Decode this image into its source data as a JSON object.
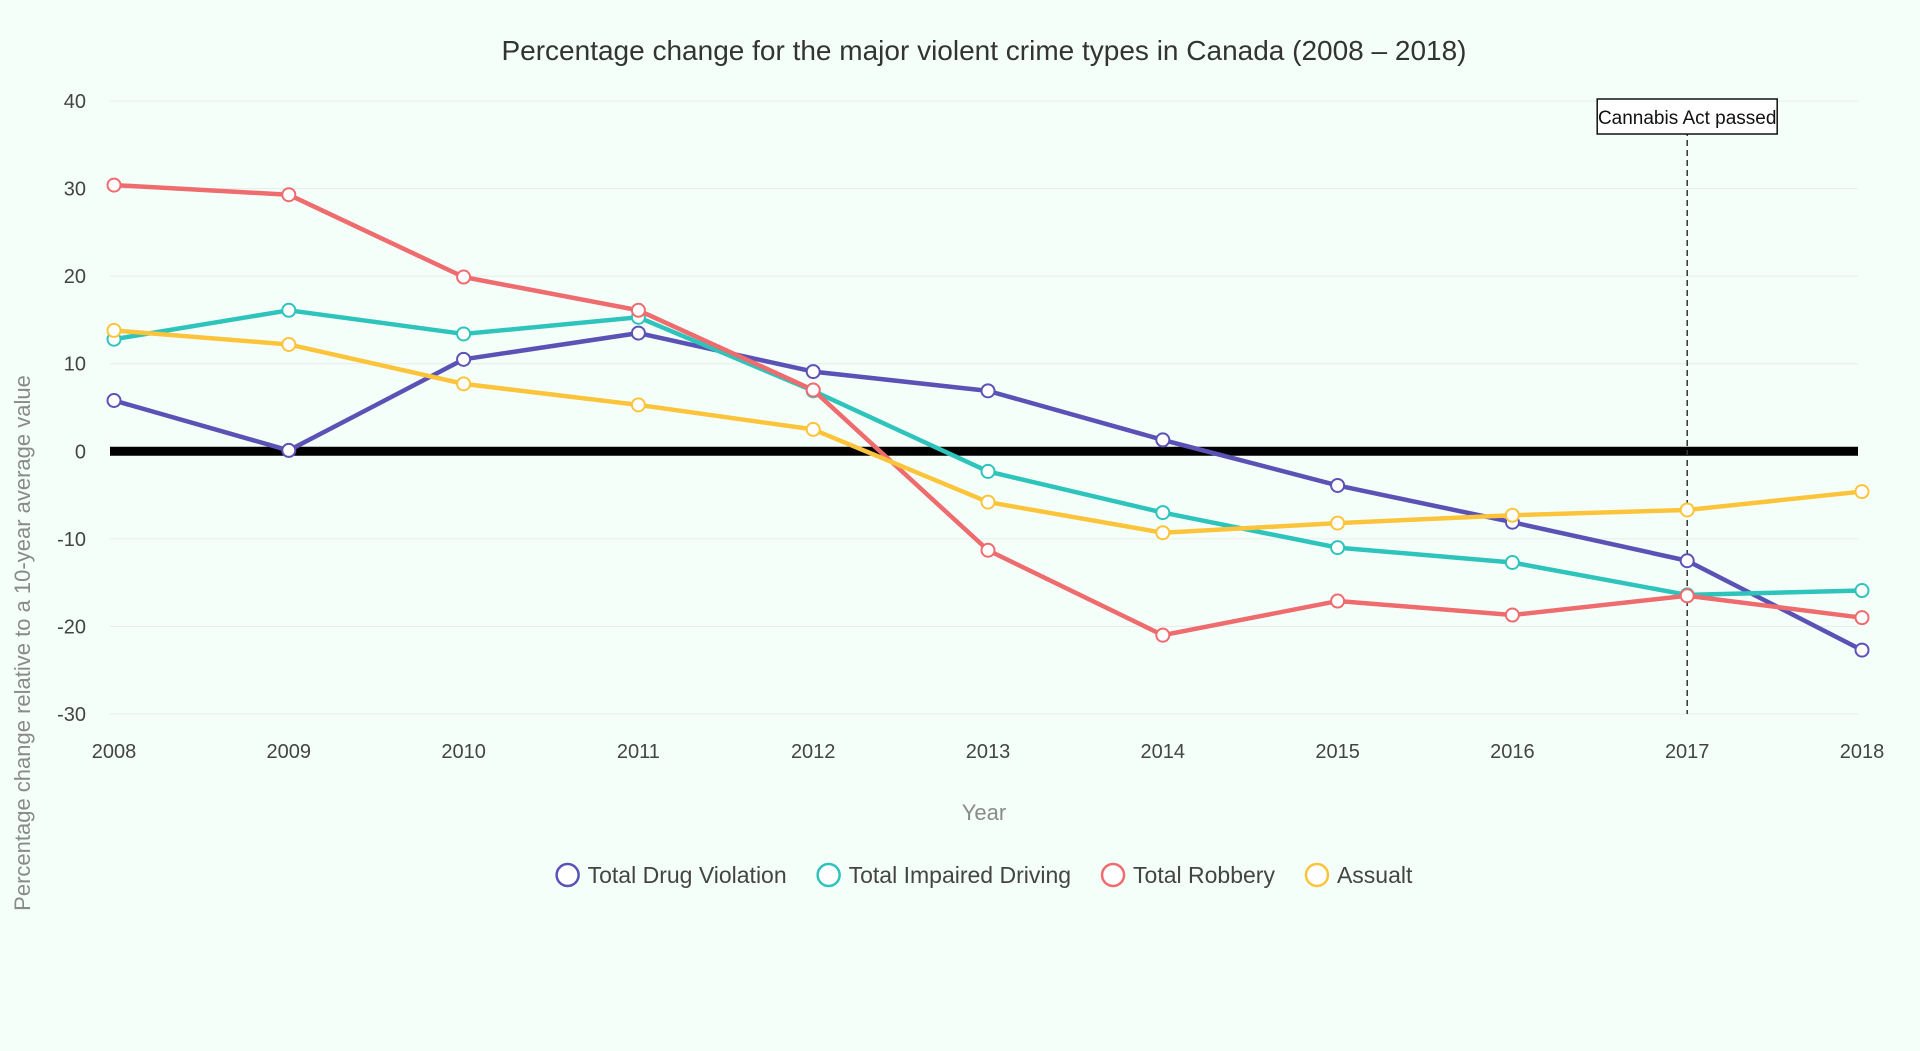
{
  "chart_data": {
    "type": "line",
    "title": "Percentage change for the major violent crime types in Canada (2008 – 2018)",
    "xlabel": "Year",
    "ylabel": "Percentage change relative to a 10-year average value",
    "x": [
      2008,
      2009,
      2010,
      2011,
      2012,
      2013,
      2014,
      2015,
      2016,
      2017,
      2018
    ],
    "ylim": [
      -30,
      40
    ],
    "yticks": [
      40,
      30,
      20,
      10,
      0,
      -10,
      -20,
      -30
    ],
    "grid": true,
    "legend_position": "bottom",
    "zero_line": true,
    "series": [
      {
        "name": "Total Drug Violation",
        "color": "#5b52b5",
        "values": [
          5.8,
          0.1,
          10.5,
          13.5,
          9.1,
          6.9,
          1.3,
          -3.9,
          -8.1,
          -12.5,
          -22.7
        ]
      },
      {
        "name": "Total Impaired Driving",
        "color": "#2ec4bc",
        "values": [
          12.8,
          16.1,
          13.4,
          15.3,
          6.9,
          -2.3,
          -7.0,
          -11.0,
          -12.7,
          -16.4,
          -15.9
        ]
      },
      {
        "name": "Total Robbery",
        "color": "#ee6b6e",
        "values": [
          30.4,
          29.3,
          19.9,
          16.1,
          7.0,
          -11.3,
          -21.0,
          -17.1,
          -18.7,
          -16.5,
          -19.0
        ]
      },
      {
        "name": "Assualt",
        "color": "#fbc43a",
        "values": [
          13.8,
          12.2,
          7.7,
          5.3,
          2.5,
          -5.8,
          -9.3,
          -8.2,
          -7.3,
          -6.7,
          -4.6
        ]
      }
    ],
    "annotations": [
      {
        "x": 2017,
        "text": "Cannabis Act passed",
        "style": "dashed-vertical-line"
      }
    ]
  }
}
